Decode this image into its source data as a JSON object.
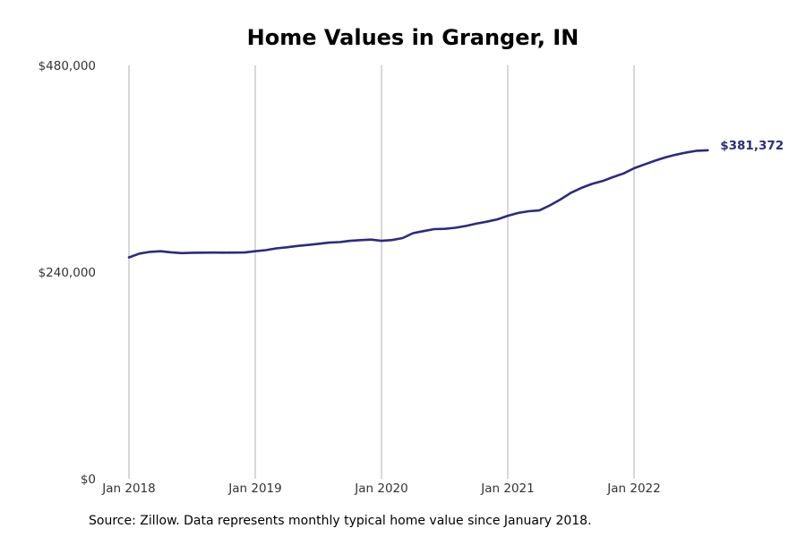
{
  "chart_data": {
    "type": "line",
    "title": "Home Values in Granger, IN",
    "xlabel": "",
    "ylabel": "",
    "ylim": [
      0,
      480000
    ],
    "y_ticks": [
      {
        "value": 0,
        "label": "$0"
      },
      {
        "value": 240000,
        "label": "$240,000"
      },
      {
        "value": 480000,
        "label": "$480,000"
      }
    ],
    "x_ticks": [
      {
        "value": "2018-01",
        "label": "Jan 2018"
      },
      {
        "value": "2019-01",
        "label": "Jan 2019"
      },
      {
        "value": "2020-01",
        "label": "Jan 2020"
      },
      {
        "value": "2021-01",
        "label": "Jan 2021"
      },
      {
        "value": "2022-01",
        "label": "Jan 2022"
      }
    ],
    "grid": "vertical",
    "line_color": "#2e2a7e",
    "end_label": "$381,372",
    "series": [
      {
        "x": [
          "2018-01",
          "2018-02",
          "2018-03",
          "2018-04",
          "2018-05",
          "2018-06",
          "2018-07",
          "2018-08",
          "2018-09",
          "2018-10",
          "2018-11",
          "2018-12",
          "2019-01",
          "2019-02",
          "2019-03",
          "2019-04",
          "2019-05",
          "2019-06",
          "2019-07",
          "2019-08",
          "2019-09",
          "2019-10",
          "2019-11",
          "2019-12",
          "2020-01",
          "2020-02",
          "2020-03",
          "2020-04",
          "2020-05",
          "2020-06",
          "2020-07",
          "2020-08",
          "2020-09",
          "2020-10",
          "2020-11",
          "2020-12",
          "2021-01",
          "2021-02",
          "2021-03",
          "2021-04",
          "2021-05",
          "2021-06",
          "2021-07",
          "2021-08",
          "2021-09",
          "2021-10",
          "2021-11",
          "2021-12",
          "2022-01",
          "2022-02",
          "2022-03",
          "2022-04",
          "2022-05",
          "2022-06",
          "2022-07",
          "2022-08"
        ],
        "values": [
          257000,
          261500,
          263500,
          264200,
          263000,
          262000,
          262400,
          262500,
          262700,
          262500,
          262600,
          262800,
          264200,
          265500,
          267500,
          268800,
          270300,
          271500,
          272800,
          274200,
          274800,
          276300,
          277100,
          277700,
          276300,
          277200,
          279500,
          285200,
          287600,
          289900,
          290200,
          291400,
          293500,
          296200,
          298500,
          301200,
          305300,
          308700,
          310600,
          311600,
          317400,
          324300,
          332100,
          337800,
          342300,
          345700,
          350200,
          354500,
          360500,
          365000,
          369400,
          373200,
          376300,
          378900,
          380900,
          381372
        ]
      }
    ]
  },
  "source_text": "Source: Zillow. Data represents monthly typical home value since January 2018."
}
